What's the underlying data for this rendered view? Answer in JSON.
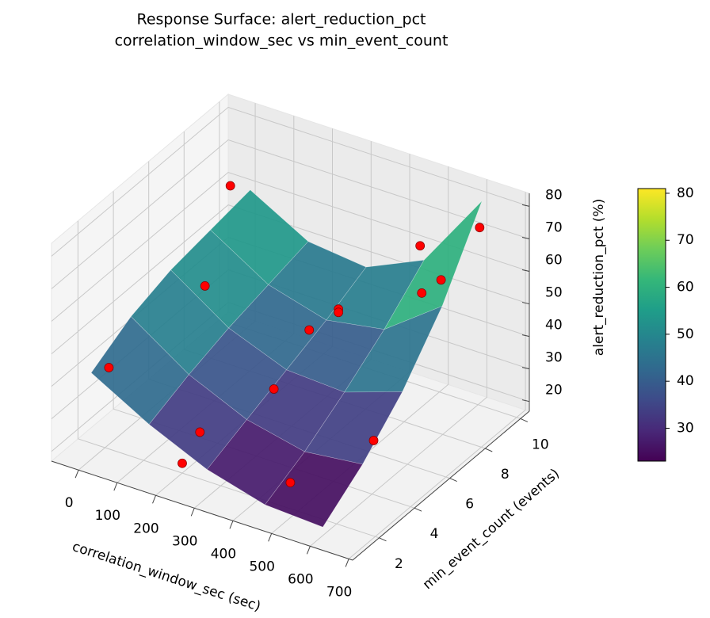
{
  "chart_data": {
    "type": "surface3d",
    "title": "Response Surface: alert_reduction_pct",
    "subtitle": "correlation_window_sec vs min_event_count",
    "xlabel": "correlation_window_sec (sec)",
    "ylabel": "min_event_count (events)",
    "zlabel": "alert_reduction_pct (%)",
    "xlim": [
      -70,
      710
    ],
    "ylim": [
      0.5,
      10.5
    ],
    "zlim": [
      17,
      84
    ],
    "xticks": [
      0,
      100,
      200,
      300,
      400,
      500,
      600,
      700
    ],
    "yticks": [
      2,
      4,
      6,
      8,
      10
    ],
    "zticks": [
      20,
      30,
      40,
      50,
      60,
      70,
      80
    ],
    "grid": true,
    "colormap": "viridis",
    "surface": {
      "x": [
        10,
        160,
        310,
        460,
        610
      ],
      "y": [
        1,
        3.25,
        5.5,
        7.75,
        10
      ],
      "z": [
        [
          45,
          35,
          27,
          22,
          21
        ],
        [
          52,
          40,
          32,
          28,
          30
        ],
        [
          56,
          44,
          37,
          36,
          42
        ],
        [
          58,
          47,
          42,
          45,
          58
        ],
        [
          60,
          50,
          48,
          56,
          80
        ]
      ]
    },
    "points": {
      "color": "#ff0000",
      "x": [
        50,
        30,
        10,
        300,
        330,
        330,
        300,
        550,
        450,
        500,
        650,
        650,
        480,
        200,
        200
      ],
      "y": [
        8,
        7,
        2,
        7,
        8,
        8,
        5,
        9,
        10,
        9,
        9,
        3,
        2,
        2,
        3
      ],
      "z": [
        72,
        45,
        42,
        42,
        45,
        44,
        33,
        58,
        60,
        52,
        78,
        40,
        25,
        20,
        25
      ]
    },
    "colorbar": {
      "clim": [
        23,
        81
      ],
      "ticks": [
        30,
        40,
        50,
        60,
        70,
        80
      ]
    }
  }
}
